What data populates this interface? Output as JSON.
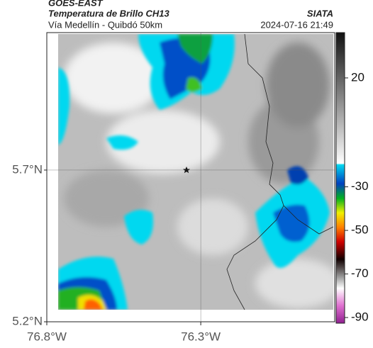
{
  "header": {
    "source": "GOES-EAST",
    "title": "Temperatura de Brillo CH13",
    "agency": "SIATA",
    "subtitle": "Vía Medellín - Quibdó 50km",
    "timestamp": "2024-07-16 21:49"
  },
  "map": {
    "xlim": [
      -76.8,
      -75.865
    ],
    "ylim": [
      5.2,
      6.153
    ],
    "xticks": [
      {
        "value": -76.8,
        "label": "76.8°W"
      },
      {
        "value": -76.3,
        "label": "76.3°W"
      }
    ],
    "yticks": [
      {
        "value": 5.2,
        "label": "5.2°N"
      },
      {
        "value": 5.7,
        "label": "5.7°N"
      }
    ],
    "grid": true
  },
  "colorbar": {
    "lim": [
      -92.6,
      40.8
    ],
    "ticks": [
      20,
      -30,
      -50,
      -70,
      -90
    ]
  }
}
